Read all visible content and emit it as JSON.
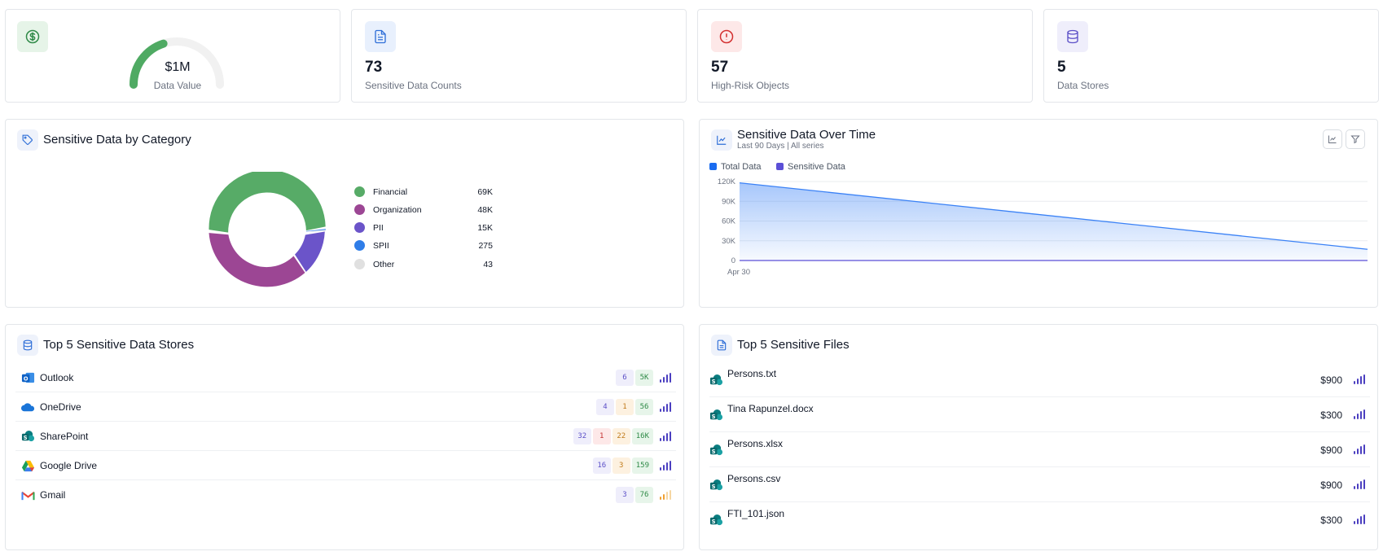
{
  "kpis": {
    "data_value": {
      "value": "$1M",
      "label": "Data Value",
      "gauge_fraction": 0.4,
      "icon": "dollar-icon"
    },
    "sensitive_counts": {
      "value": "73",
      "label": "Sensitive Data Counts",
      "icon": "document-icon"
    },
    "high_risk": {
      "value": "57",
      "label": "High-Risk Objects",
      "icon": "alert-circle-icon"
    },
    "data_stores": {
      "value": "5",
      "label": "Data Stores",
      "icon": "database-icon"
    }
  },
  "category": {
    "title": "Sensitive Data by Category",
    "legend": [
      {
        "label": "Financial",
        "value": "69K",
        "color": "#57ab67"
      },
      {
        "label": "Organization",
        "value": "48K",
        "color": "#9c4694"
      },
      {
        "label": "PII",
        "value": "15K",
        "color": "#6b54c9"
      },
      {
        "label": "SPII",
        "value": "275",
        "color": "#2f7de8"
      },
      {
        "label": "Other",
        "value": "43",
        "color": "#e0e0e0"
      }
    ]
  },
  "timeline": {
    "title": "Sensitive Data Over Time",
    "subtitle": "Last 90 Days | All series",
    "legend": [
      {
        "label": "Total Data",
        "color": "#1a6cf0"
      },
      {
        "label": "Sensitive Data",
        "color": "#5b4fd6"
      }
    ]
  },
  "chart_data": {
    "type": "area",
    "x": [
      "Apr 30",
      ""
    ],
    "y_ticks": [
      "120K",
      "90K",
      "60K",
      "30K",
      "0"
    ],
    "ylim": [
      0,
      120000
    ],
    "series": [
      {
        "name": "Total Data",
        "values": [
          118000,
          17000
        ]
      },
      {
        "name": "Sensitive Data",
        "values": [
          0,
          0
        ]
      }
    ]
  },
  "stores": {
    "title": "Top 5 Sensitive Data Stores",
    "rows": [
      {
        "name": "Outlook",
        "badges": [
          {
            "v": "6",
            "c": "purple"
          },
          {
            "v": "5K",
            "c": "green"
          }
        ],
        "signal": "purple"
      },
      {
        "name": "OneDrive",
        "badges": [
          {
            "v": "4",
            "c": "purple"
          },
          {
            "v": "1",
            "c": "orange"
          },
          {
            "v": "56",
            "c": "green"
          }
        ],
        "signal": "purple"
      },
      {
        "name": "SharePoint",
        "badges": [
          {
            "v": "32",
            "c": "purple"
          },
          {
            "v": "1",
            "c": "red"
          },
          {
            "v": "22",
            "c": "orange"
          },
          {
            "v": "16K",
            "c": "green"
          }
        ],
        "signal": "purple"
      },
      {
        "name": "Google Drive",
        "badges": [
          {
            "v": "16",
            "c": "purple"
          },
          {
            "v": "3",
            "c": "orange"
          },
          {
            "v": "159",
            "c": "green"
          }
        ],
        "signal": "purple"
      },
      {
        "name": "Gmail",
        "badges": [
          {
            "v": "3",
            "c": "purple"
          },
          {
            "v": "76",
            "c": "green"
          }
        ],
        "signal": "orange"
      }
    ]
  },
  "files": {
    "title": "Top 5 Sensitive Files",
    "rows": [
      {
        "name": "Persons.txt",
        "price": "$900"
      },
      {
        "name": "Tina Rapunzel.docx",
        "price": "$300"
      },
      {
        "name": "Persons.xlsx",
        "price": "$900"
      },
      {
        "name": "Persons.csv",
        "price": "$900"
      },
      {
        "name": "FTI_101.json",
        "price": "$300"
      }
    ]
  }
}
